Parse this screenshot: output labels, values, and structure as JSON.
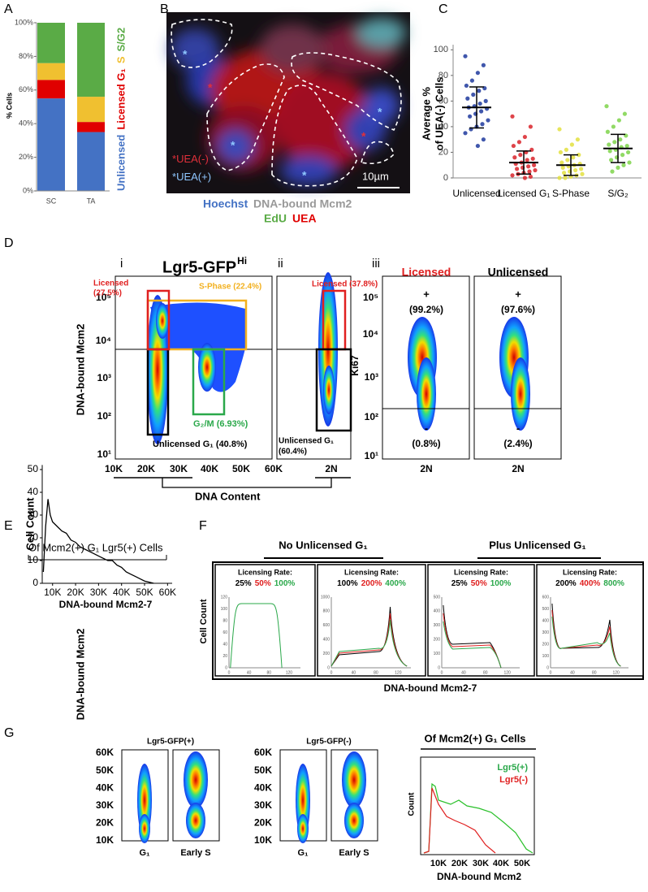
{
  "chart_data": [
    {
      "type": "stacked-bar",
      "label": "A",
      "ylabel": "% Cells",
      "categories": [
        "SC",
        "TA"
      ],
      "series": [
        {
          "name": "Unlicensed",
          "color": "#4472c4",
          "values": [
            55,
            35
          ]
        },
        {
          "name": "Licensed G₁",
          "color": "#e00000",
          "values": [
            11,
            6
          ]
        },
        {
          "name": "S",
          "color": "#f0c030",
          "values": [
            10,
            15
          ]
        },
        {
          "name": "S/G2",
          "color": "#5aab46",
          "values": [
            24,
            44
          ]
        }
      ],
      "ylim": [
        0,
        100
      ],
      "yticks": [
        {
          "value": 0,
          "label": "0%"
        },
        {
          "value": 20,
          "label": "20%"
        },
        {
          "value": 40,
          "label": "40%"
        },
        {
          "value": 60,
          "label": "60%"
        },
        {
          "value": 80,
          "label": "80%"
        },
        {
          "value": 100,
          "label": "100%"
        }
      ]
    },
    {
      "type": "dotplot",
      "label": "C",
      "ylabel": [
        "Average %",
        "of UEA(-) Cells"
      ],
      "categories": [
        "Unlicensed",
        "Licensed G₁",
        "S-Phase",
        "S/G₂"
      ],
      "groups": [
        {
          "color": "#1f3a9e",
          "mean": 55,
          "sd": 16,
          "points": [
            95,
            88,
            82,
            76,
            72,
            70,
            68,
            65,
            62,
            60,
            58,
            56,
            55,
            54,
            52,
            50,
            48,
            45,
            42,
            40,
            38,
            35,
            30,
            25
          ]
        },
        {
          "color": "#d9232a",
          "mean": 12,
          "sd": 9,
          "points": [
            48,
            40,
            32,
            28,
            25,
            22,
            20,
            18,
            16,
            15,
            14,
            12,
            11,
            10,
            9,
            8,
            7,
            6,
            5,
            4,
            3,
            2,
            1,
            0
          ]
        },
        {
          "color": "#e3e040",
          "mean": 10,
          "sd": 8,
          "points": [
            38,
            30,
            26,
            22,
            20,
            18,
            16,
            14,
            12,
            11,
            10,
            9,
            8,
            7,
            6,
            5,
            4,
            3,
            2,
            1,
            0,
            0
          ]
        },
        {
          "color": "#7ed34a",
          "mean": 23,
          "sd": 11,
          "points": [
            56,
            50,
            45,
            40,
            36,
            33,
            30,
            28,
            26,
            25,
            24,
            22,
            21,
            20,
            18,
            16,
            14,
            12,
            10,
            8,
            5
          ]
        }
      ],
      "ylim": [
        0,
        104
      ],
      "yticks": [
        0,
        20,
        40,
        60,
        80,
        100
      ]
    },
    {
      "type": "line",
      "label": "E",
      "title": "Of Mcm2(+) G₁ Lgr5(+) Cells",
      "xlabel": "DNA-bound Mcm2-7",
      "ylabel": "Cell Count",
      "color": "#000000",
      "x": [
        6000,
        7000,
        8000,
        9000,
        10000,
        12000,
        14000,
        16000,
        18000,
        20000,
        22000,
        24000,
        26000,
        28000,
        30000,
        32000,
        34000,
        36000,
        38000,
        40000,
        42000,
        44000,
        46000,
        48000,
        50000,
        52000,
        54000
      ],
      "values": [
        5,
        25,
        37,
        30,
        27,
        25,
        23,
        22,
        19,
        18,
        16,
        15,
        14,
        13,
        12,
        11,
        10,
        10,
        8,
        7,
        5,
        4,
        3,
        2,
        1,
        0.5,
        0
      ],
      "xlim": [
        5500,
        62000
      ],
      "ylim": [
        0,
        52
      ],
      "xticks": [
        {
          "value": 10000,
          "label": "10K"
        },
        {
          "value": 20000,
          "label": "20K"
        },
        {
          "value": 30000,
          "label": "30K"
        },
        {
          "value": 40000,
          "label": "40K"
        },
        {
          "value": 50000,
          "label": "50K"
        },
        {
          "value": 60000,
          "label": "60K"
        }
      ],
      "yticks": [
        0,
        10,
        20,
        30,
        40,
        50
      ]
    }
  ],
  "figure": {
    "B": {
      "label": "B",
      "asterisk": "*",
      "legend": [
        "UEA(-)",
        "UEA(+)"
      ],
      "scale": "10µm",
      "stains": [
        "Hoechst",
        "DNA-bound Mcm2",
        "EdU",
        "UEA"
      ]
    },
    "D": {
      "label": "D",
      "title": "Lgr5-GFP",
      "title_sup": "Hi",
      "subpanels": [
        "i",
        "ii",
        "iii"
      ],
      "ylabel": "DNA-bound Mcm2",
      "yticks": [
        "10⁵",
        "10⁴",
        "10³",
        "10²",
        "10¹"
      ],
      "xticks_i": [
        "10K",
        "20K",
        "30K",
        "40K",
        "50K",
        "60K"
      ],
      "xtick_ii": "2N",
      "xlabel": "DNA Content",
      "gates_i": {
        "licensed": [
          "Licensed",
          "(27.5%)"
        ],
        "s_phase": "S-Phase (22.4%)",
        "g2m": "G₂/M (6.93%)",
        "unlicensed": "Unlicensed G₁ (40.8%)"
      },
      "gates_ii": {
        "licensed": "Licensed (37.8%)",
        "unlicensed": [
          "Unlicensed G₁",
          "(60.4%)"
        ]
      },
      "iii": {
        "ylabel": "Ki67",
        "panels": [
          {
            "title": "Licensed",
            "pos": "+",
            "pos_pct": "(99.2%)",
            "neg": "-",
            "neg_pct": "(0.8%)",
            "xtick": "2N"
          },
          {
            "title": "Unlicensed",
            "pos": "+",
            "pos_pct": "(97.6%)",
            "neg": "-",
            "neg_pct": "(2.4%)",
            "xtick": "2N"
          }
        ]
      }
    },
    "F": {
      "label": "F",
      "groups": [
        "No Unlicensed G₁",
        "Plus Unlicensed G₁"
      ],
      "ylabel": "Cell Count",
      "xlabel": "DNA-bound Mcm2-7",
      "plots": [
        {
          "heading": "Licensing Rate:",
          "rates": [
            "25%",
            "50%",
            "100%"
          ],
          "yticks": [
            "0",
            "20",
            "40",
            "60",
            "80",
            "100",
            "120"
          ],
          "xticks": [
            "0",
            "40",
            "80",
            "120"
          ]
        },
        {
          "heading": "Licensing Rate:",
          "rates": [
            "100%",
            "200%",
            "400%"
          ],
          "yticks": [
            "0",
            "200",
            "400",
            "600",
            "800",
            "1000"
          ],
          "xticks": [
            "0",
            "40",
            "80",
            "120"
          ]
        },
        {
          "heading": "Licensing Rate:",
          "rates": [
            "25%",
            "50%",
            "100%"
          ],
          "yticks": [
            "0",
            "100",
            "200",
            "300",
            "400",
            "500"
          ],
          "xticks": [
            "0",
            "40",
            "80",
            "120"
          ]
        },
        {
          "heading": "Licensing Rate:",
          "rates": [
            "200%",
            "400%",
            "800%"
          ],
          "yticks": [
            "0",
            "100",
            "200",
            "300",
            "400",
            "500",
            "600"
          ],
          "xticks": [
            "0",
            "40",
            "80",
            "120"
          ]
        }
      ]
    },
    "G": {
      "label": "G",
      "ylabel": "DNA-bound Mcm2",
      "plots": [
        {
          "title": "Lgr5-GFP(+)",
          "yticks": [
            "60K",
            "50K",
            "40K",
            "30K",
            "20K",
            "10K"
          ],
          "xlabels": [
            "G₁",
            "Early S"
          ]
        },
        {
          "title": "Lgr5-GFP(-)",
          "yticks": [
            "60K",
            "50K",
            "40K",
            "30K",
            "20K",
            "10K"
          ],
          "xlabels": [
            "G₁",
            "Early S"
          ]
        }
      ],
      "hist": {
        "title": "Of Mcm2(+) G₁ Cells",
        "legend": [
          "Lgr5(+)",
          "Lgr5(-)"
        ],
        "ylabel": "Count",
        "xticks": [
          "10K",
          "20K",
          "30K",
          "40K",
          "50K"
        ],
        "xlabel": "DNA-bound Mcm2"
      }
    }
  }
}
